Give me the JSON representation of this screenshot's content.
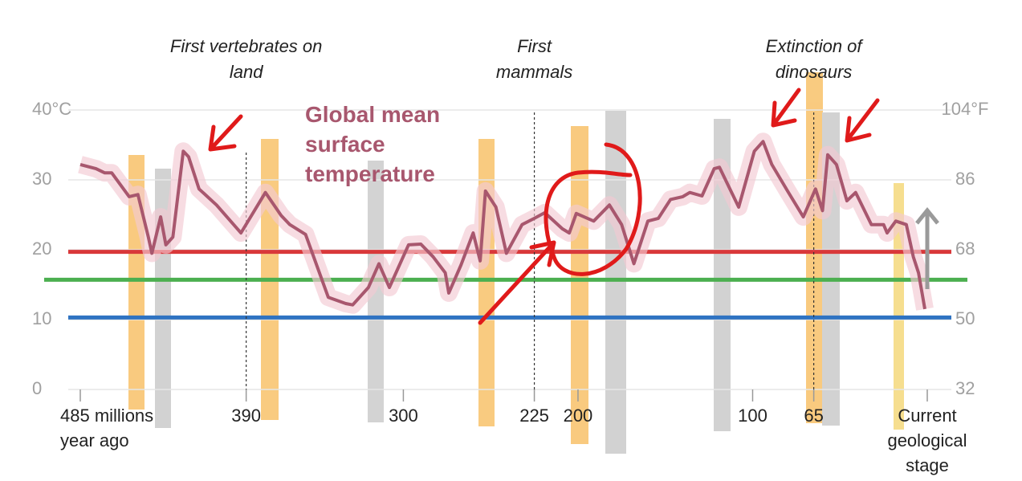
{
  "chart_data": {
    "type": "line",
    "x": [
      485,
      476,
      471,
      467,
      457,
      452,
      446,
      444,
      439,
      436,
      432,
      426,
      423,
      417,
      407,
      393,
      379,
      370,
      365,
      356,
      343,
      333,
      329,
      320,
      314,
      308,
      297,
      290,
      283,
      276,
      274,
      267,
      260,
      256,
      253,
      247,
      241,
      232,
      225,
      219,
      209,
      205,
      201,
      191,
      182,
      175,
      168,
      160,
      154,
      147,
      140,
      136,
      129,
      122,
      119,
      108,
      99,
      94,
      89,
      80,
      71,
      64,
      60,
      57,
      52,
      46,
      41,
      32,
      25,
      23,
      18,
      12,
      8,
      5,
      1.4
    ],
    "series": [
      {
        "name": "Global mean surface temperature",
        "color": "#a8576e",
        "band_color": "#f2c9d3",
        "values": [
          32.2,
          31.6,
          31,
          31,
          27.6,
          27.9,
          21.8,
          19.5,
          24.7,
          20.7,
          21.8,
          34.1,
          33.3,
          28.7,
          26.4,
          22.4,
          28.2,
          24.9,
          23.6,
          22.2,
          13.2,
          12.3,
          12.1,
          14.6,
          18,
          14.6,
          20.7,
          20.8,
          19,
          16.7,
          13.8,
          17.8,
          22.4,
          18.4,
          28.4,
          26.1,
          19.5,
          23.6,
          24.5,
          25.3,
          23,
          22.4,
          25.2,
          24.1,
          26.4,
          23.6,
          18,
          24.1,
          24.5,
          27.2,
          27.6,
          28.2,
          27.7,
          31.6,
          31.8,
          26.1,
          34.1,
          35.5,
          32.2,
          28.4,
          24.7,
          28.7,
          25.6,
          33.6,
          32.2,
          27,
          28.2,
          23.6,
          23.6,
          22.4,
          24.1,
          23.6,
          19,
          16.7,
          11.5
        ]
      }
    ],
    "xlim": [
      485,
      0
    ],
    "xticks": [
      {
        "value": 485,
        "label": "485 millions year ago"
      },
      390,
      300,
      225,
      200,
      100,
      65,
      {
        "value": 0,
        "label": "Current geological stage"
      }
    ],
    "ylim": [
      0,
      40
    ],
    "yticks": [
      0,
      10,
      20,
      30,
      {
        "value": 40,
        "label": "40°C"
      }
    ],
    "y2lim": [
      32,
      104
    ],
    "y2ticks": [
      32,
      50,
      68,
      86,
      {
        "value": 104,
        "label": "104°F"
      }
    ],
    "grid": true,
    "reference_lines": [
      {
        "value": 19.7,
        "color": "#d9383a"
      },
      {
        "value": 15.7,
        "color": "#4caf50"
      },
      {
        "value": 10.3,
        "color": "#2f73c2"
      }
    ],
    "annotations": [
      {
        "x": 390,
        "text": "First vertebrates on land"
      },
      {
        "x": 225,
        "text": "First mammals"
      },
      {
        "x": 65,
        "text": "Extinction of dinosaurs"
      }
    ]
  }
}
